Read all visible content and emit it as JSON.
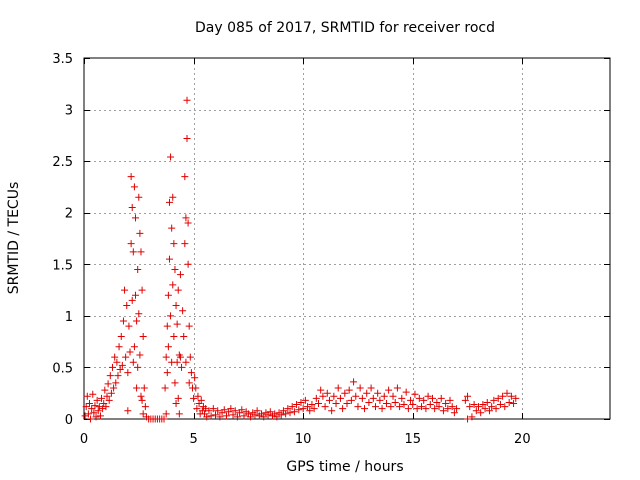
{
  "chart_data": {
    "type": "scatter",
    "title": "Day 085 of 2017, SRMTID for receiver rocd",
    "xlabel": "GPS time / hours",
    "ylabel": "SRMTID / TECUs",
    "xlim": [
      0,
      24
    ],
    "ylim": [
      0,
      3.5
    ],
    "xticks": [
      0,
      5,
      10,
      15,
      20
    ],
    "xtick_labels": [
      "0",
      "5",
      "10",
      "15",
      "20"
    ],
    "yticks": [
      0,
      0.5,
      1,
      1.5,
      2,
      2.5,
      3,
      3.5
    ],
    "ytick_labels": [
      "0",
      "0.5",
      "1",
      "1.5",
      "2",
      "2.5",
      "3",
      "3.5"
    ],
    "grid": true,
    "marker": "plus",
    "series": [
      {
        "name": "SRMTID",
        "color": "#e00000",
        "points": [
          [
            0.05,
            0.03
          ],
          [
            0.1,
            0.12
          ],
          [
            0.15,
            0.22
          ],
          [
            0.2,
            0.05
          ],
          [
            0.25,
            0.15
          ],
          [
            0.3,
            0.0
          ],
          [
            0.35,
            0.1
          ],
          [
            0.4,
            0.24
          ],
          [
            0.45,
            0.06
          ],
          [
            0.5,
            0.13
          ],
          [
            0.55,
            0.02
          ],
          [
            0.6,
            0.18
          ],
          [
            0.65,
            0.08
          ],
          [
            0.7,
            0.12
          ],
          [
            0.75,
            0.03
          ],
          [
            0.8,
            0.2
          ],
          [
            0.85,
            0.1
          ],
          [
            0.9,
            0.15
          ],
          [
            0.95,
            0.28
          ],
          [
            1.0,
            0.12
          ],
          [
            1.05,
            0.22
          ],
          [
            1.1,
            0.34
          ],
          [
            1.15,
            0.18
          ],
          [
            1.2,
            0.42
          ],
          [
            1.25,
            0.25
          ],
          [
            1.3,
            0.5
          ],
          [
            1.35,
            0.3
          ],
          [
            1.4,
            0.6
          ],
          [
            1.45,
            0.35
          ],
          [
            1.5,
            0.55
          ],
          [
            1.55,
            0.42
          ],
          [
            1.6,
            0.7
          ],
          [
            1.65,
            0.48
          ],
          [
            1.7,
            0.8
          ],
          [
            1.75,
            0.52
          ],
          [
            1.8,
            0.95
          ],
          [
            1.85,
            1.25
          ],
          [
            1.9,
            0.6
          ],
          [
            1.95,
            1.1
          ],
          [
            2.0,
            0.45
          ],
          [
            2.0,
            0.08
          ],
          [
            2.05,
            0.9
          ],
          [
            2.1,
            0.65
          ],
          [
            2.15,
            1.7
          ],
          [
            2.15,
            2.35
          ],
          [
            2.2,
            1.15
          ],
          [
            2.2,
            2.05
          ],
          [
            2.25,
            0.55
          ],
          [
            2.25,
            1.62
          ],
          [
            2.3,
            2.25
          ],
          [
            2.3,
            0.7
          ],
          [
            2.35,
            1.2
          ],
          [
            2.35,
            1.95
          ],
          [
            2.4,
            0.95
          ],
          [
            2.4,
            0.3
          ],
          [
            2.45,
            1.45
          ],
          [
            2.45,
            0.5
          ],
          [
            2.5,
            2.15
          ],
          [
            2.5,
            1.02
          ],
          [
            2.55,
            1.8
          ],
          [
            2.55,
            0.62
          ],
          [
            2.6,
            1.62
          ],
          [
            2.6,
            0.22
          ],
          [
            2.65,
            1.25
          ],
          [
            2.65,
            0.18
          ],
          [
            2.7,
            0.8
          ],
          [
            2.7,
            0.05
          ],
          [
            2.75,
            0.3
          ],
          [
            2.8,
            0.12
          ],
          [
            2.85,
            0.02
          ],
          [
            2.95,
            0.0
          ],
          [
            3.05,
            0.0
          ],
          [
            3.15,
            0.0
          ],
          [
            3.25,
            0.0
          ],
          [
            3.35,
            0.0
          ],
          [
            3.45,
            0.0
          ],
          [
            3.55,
            0.0
          ],
          [
            3.65,
            0.0
          ],
          [
            3.75,
            0.05
          ],
          [
            3.7,
            0.3
          ],
          [
            3.75,
            0.6
          ],
          [
            3.8,
            0.9
          ],
          [
            3.8,
            0.45
          ],
          [
            3.85,
            1.2
          ],
          [
            3.85,
            0.7
          ],
          [
            3.9,
            1.55
          ],
          [
            3.9,
            2.1
          ],
          [
            3.95,
            2.54
          ],
          [
            3.95,
            1.0
          ],
          [
            4.0,
            1.85
          ],
          [
            4.0,
            0.55
          ],
          [
            4.05,
            2.15
          ],
          [
            4.05,
            1.3
          ],
          [
            4.1,
            1.7
          ],
          [
            4.1,
            0.8
          ],
          [
            4.15,
            1.45
          ],
          [
            4.15,
            0.35
          ],
          [
            4.2,
            1.1
          ],
          [
            4.2,
            0.15
          ],
          [
            4.25,
            0.92
          ],
          [
            4.25,
            0.55
          ],
          [
            4.3,
            1.25
          ],
          [
            4.3,
            0.2
          ],
          [
            4.35,
            0.62
          ],
          [
            4.35,
            0.05
          ],
          [
            4.4,
            1.4
          ],
          [
            4.4,
            0.6
          ],
          [
            4.45,
            0.5
          ],
          [
            4.5,
            1.05
          ],
          [
            4.55,
            0.8
          ],
          [
            4.6,
            1.7
          ],
          [
            4.6,
            2.35
          ],
          [
            4.65,
            1.95
          ],
          [
            4.65,
            0.55
          ],
          [
            4.7,
            2.72
          ],
          [
            4.7,
            3.09
          ],
          [
            4.75,
            1.5
          ],
          [
            4.75,
            1.9
          ],
          [
            4.8,
            0.9
          ],
          [
            4.8,
            0.35
          ],
          [
            4.85,
            0.6
          ],
          [
            4.9,
            0.45
          ],
          [
            4.95,
            0.3
          ],
          [
            5.0,
            0.2
          ],
          [
            5.05,
            0.4
          ],
          [
            5.1,
            0.3
          ],
          [
            5.15,
            0.1
          ],
          [
            5.2,
            0.22
          ],
          [
            5.25,
            0.15
          ],
          [
            5.3,
            0.05
          ],
          [
            5.35,
            0.18
          ],
          [
            5.4,
            0.08
          ],
          [
            5.45,
            0.12
          ],
          [
            5.5,
            0.05
          ],
          [
            5.55,
            0.1
          ],
          [
            5.6,
            0.02
          ],
          [
            5.7,
            0.08
          ],
          [
            5.8,
            0.03
          ],
          [
            5.9,
            0.1
          ],
          [
            6.0,
            0.04
          ],
          [
            6.1,
            0.08
          ],
          [
            6.2,
            0.02
          ],
          [
            6.3,
            0.06
          ],
          [
            6.4,
            0.09
          ],
          [
            6.5,
            0.03
          ],
          [
            6.6,
            0.07
          ],
          [
            6.7,
            0.1
          ],
          [
            6.8,
            0.04
          ],
          [
            6.9,
            0.08
          ],
          [
            7.0,
            0.02
          ],
          [
            7.1,
            0.06
          ],
          [
            7.2,
            0.09
          ],
          [
            7.3,
            0.03
          ],
          [
            7.4,
            0.07
          ],
          [
            7.5,
            0.05
          ],
          [
            7.6,
            0.02
          ],
          [
            7.7,
            0.06
          ],
          [
            7.8,
            0.04
          ],
          [
            7.9,
            0.08
          ],
          [
            8.0,
            0.03
          ],
          [
            8.1,
            0.05
          ],
          [
            8.2,
            0.02
          ],
          [
            8.3,
            0.06
          ],
          [
            8.4,
            0.04
          ],
          [
            8.5,
            0.07
          ],
          [
            8.6,
            0.03
          ],
          [
            8.7,
            0.05
          ],
          [
            8.8,
            0.02
          ],
          [
            8.9,
            0.06
          ],
          [
            9.0,
            0.04
          ],
          [
            9.1,
            0.08
          ],
          [
            9.2,
            0.05
          ],
          [
            9.3,
            0.1
          ],
          [
            9.4,
            0.06
          ],
          [
            9.5,
            0.12
          ],
          [
            9.6,
            0.07
          ],
          [
            9.7,
            0.14
          ],
          [
            9.8,
            0.09
          ],
          [
            9.9,
            0.16
          ],
          [
            10.0,
            0.1
          ],
          [
            10.1,
            0.18
          ],
          [
            10.2,
            0.12
          ],
          [
            10.3,
            0.08
          ],
          [
            10.4,
            0.14
          ],
          [
            10.5,
            0.1
          ],
          [
            10.6,
            0.2
          ],
          [
            10.7,
            0.15
          ],
          [
            10.8,
            0.28
          ],
          [
            10.9,
            0.22
          ],
          [
            11.0,
            0.12
          ],
          [
            11.1,
            0.25
          ],
          [
            11.2,
            0.18
          ],
          [
            11.3,
            0.08
          ],
          [
            11.4,
            0.22
          ],
          [
            11.5,
            0.15
          ],
          [
            11.6,
            0.3
          ],
          [
            11.7,
            0.2
          ],
          [
            11.8,
            0.1
          ],
          [
            11.9,
            0.25
          ],
          [
            12.0,
            0.15
          ],
          [
            12.1,
            0.28
          ],
          [
            12.2,
            0.18
          ],
          [
            12.3,
            0.36
          ],
          [
            12.4,
            0.22
          ],
          [
            12.5,
            0.12
          ],
          [
            12.6,
            0.3
          ],
          [
            12.7,
            0.2
          ],
          [
            12.8,
            0.1
          ],
          [
            12.9,
            0.25
          ],
          [
            13.0,
            0.16
          ],
          [
            13.1,
            0.3
          ],
          [
            13.2,
            0.2
          ],
          [
            13.3,
            0.12
          ],
          [
            13.4,
            0.25
          ],
          [
            13.5,
            0.18
          ],
          [
            13.6,
            0.1
          ],
          [
            13.7,
            0.22
          ],
          [
            13.8,
            0.15
          ],
          [
            13.9,
            0.28
          ],
          [
            14.0,
            0.12
          ],
          [
            14.1,
            0.22
          ],
          [
            14.2,
            0.16
          ],
          [
            14.3,
            0.3
          ],
          [
            14.4,
            0.12
          ],
          [
            14.5,
            0.2
          ],
          [
            14.6,
            0.14
          ],
          [
            14.7,
            0.26
          ],
          [
            14.8,
            0.1
          ],
          [
            14.9,
            0.18
          ],
          [
            15.0,
            0.14
          ],
          [
            15.1,
            0.24
          ],
          [
            15.2,
            0.1
          ],
          [
            15.3,
            0.2
          ],
          [
            15.4,
            0.12
          ],
          [
            15.5,
            0.18
          ],
          [
            15.6,
            0.1
          ],
          [
            15.7,
            0.22
          ],
          [
            15.8,
            0.14
          ],
          [
            15.9,
            0.2
          ],
          [
            16.0,
            0.1
          ],
          [
            16.1,
            0.16
          ],
          [
            16.2,
            0.12
          ],
          [
            16.3,
            0.2
          ],
          [
            16.4,
            0.08
          ],
          [
            16.5,
            0.15
          ],
          [
            16.6,
            0.1
          ],
          [
            16.7,
            0.18
          ],
          [
            16.8,
            0.12
          ],
          [
            16.9,
            0.06
          ],
          [
            17.0,
            0.1
          ],
          [
            17.4,
            0.18
          ],
          [
            17.5,
            0.0
          ],
          [
            17.5,
            0.22
          ],
          [
            17.6,
            0.12
          ],
          [
            17.7,
            0.02
          ],
          [
            17.8,
            0.14
          ],
          [
            17.9,
            0.08
          ],
          [
            18.0,
            0.12
          ],
          [
            18.1,
            0.06
          ],
          [
            18.2,
            0.14
          ],
          [
            18.3,
            0.1
          ],
          [
            18.4,
            0.16
          ],
          [
            18.5,
            0.08
          ],
          [
            18.6,
            0.12
          ],
          [
            18.7,
            0.18
          ],
          [
            18.8,
            0.1
          ],
          [
            18.9,
            0.2
          ],
          [
            19.0,
            0.14
          ],
          [
            19.1,
            0.22
          ],
          [
            19.2,
            0.12
          ],
          [
            19.3,
            0.25
          ],
          [
            19.4,
            0.16
          ],
          [
            19.5,
            0.22
          ],
          [
            19.6,
            0.15
          ],
          [
            19.7,
            0.2
          ]
        ]
      }
    ]
  }
}
